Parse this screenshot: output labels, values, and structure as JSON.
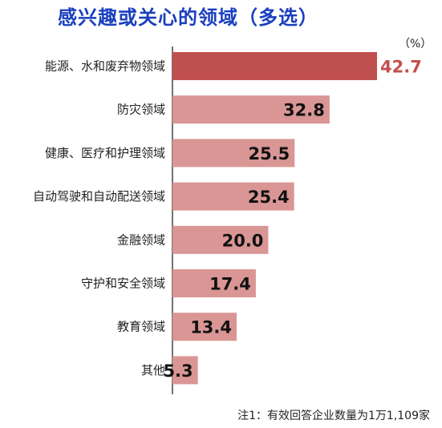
{
  "title": "感兴趣或关心的领域（多选）",
  "unit": "（%）",
  "note": "注1：有效回答企业数量为1万1,109家",
  "chart_data": {
    "type": "bar",
    "orientation": "horizontal",
    "categories": [
      "能源、水和废弃物领域",
      "防灾领域",
      "健康、医疗和护理领域",
      "自动驾驶和自动配送领域",
      "金融领域",
      "守护和安全领域",
      "教育领域",
      "其他"
    ],
    "values": [
      42.7,
      32.8,
      25.5,
      25.4,
      20.0,
      17.4,
      13.4,
      5.3
    ],
    "value_labels": [
      "42.7",
      "32.8",
      "25.5",
      "25.4",
      "20.0",
      "17.4",
      "13.4",
      "5.3"
    ],
    "highlight_index": 0,
    "colors": {
      "highlight": "#c0504d",
      "bar": "#d99694",
      "highlight_label": "#c0504d",
      "label": "#111111",
      "title": "#1a3fbf"
    },
    "xlim": [
      0,
      45
    ],
    "grid": false,
    "legend": "none"
  }
}
